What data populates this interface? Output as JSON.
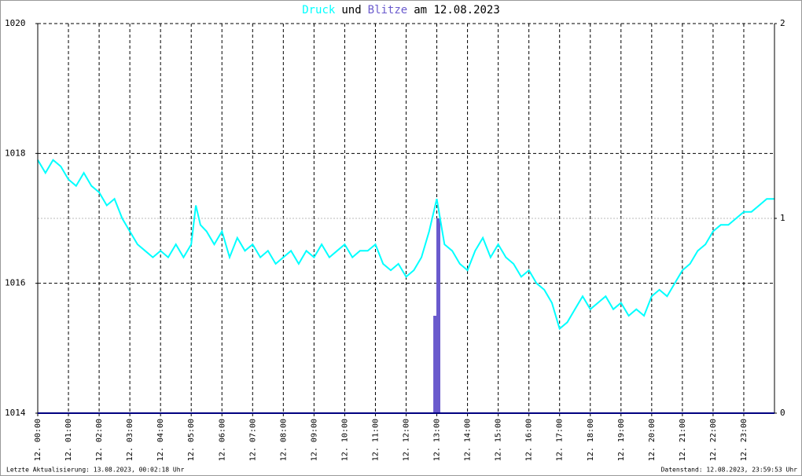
{
  "chart_data": {
    "type": "line",
    "title": [
      "Druck",
      "und",
      "Blitze",
      "am 12.08.2023"
    ],
    "footer_left": "Letzte Aktualisierung: 13.08.2023, 00:02:18 Uhr",
    "footer_right": "Datenstand: 12.08.2023, 23:59:53 Uhr",
    "xlim": [
      0,
      24
    ],
    "xticks": [
      {
        "value": 0,
        "label": "12. 00:00"
      },
      {
        "value": 1,
        "label": "12. 01:00"
      },
      {
        "value": 2,
        "label": "12. 02:00"
      },
      {
        "value": 3,
        "label": "12. 03:00"
      },
      {
        "value": 4,
        "label": "12. 04:00"
      },
      {
        "value": 5,
        "label": "12. 05:00"
      },
      {
        "value": 6,
        "label": "12. 06:00"
      },
      {
        "value": 7,
        "label": "12. 07:00"
      },
      {
        "value": 8,
        "label": "12. 08:00"
      },
      {
        "value": 9,
        "label": "12. 09:00"
      },
      {
        "value": 10,
        "label": "12. 10:00"
      },
      {
        "value": 11,
        "label": "12. 11:00"
      },
      {
        "value": 12,
        "label": "12. 12:00"
      },
      {
        "value": 13,
        "label": "12. 13:00"
      },
      {
        "value": 14,
        "label": "12. 14:00"
      },
      {
        "value": 15,
        "label": "12. 15:00"
      },
      {
        "value": 16,
        "label": "12. 16:00"
      },
      {
        "value": 17,
        "label": "12. 17:00"
      },
      {
        "value": 18,
        "label": "12. 18:00"
      },
      {
        "value": 19,
        "label": "12. 19:00"
      },
      {
        "value": 20,
        "label": "12. 20:00"
      },
      {
        "value": 21,
        "label": "12. 21:00"
      },
      {
        "value": 22,
        "label": "12. 22:00"
      },
      {
        "value": 23,
        "label": "12. 23:00"
      }
    ],
    "ylim": [
      1014,
      1020
    ],
    "yticks": [
      1014,
      1016,
      1018,
      1020
    ],
    "y2lim": [
      0,
      2
    ],
    "y2ticks": [
      0,
      1,
      2
    ],
    "grid": true,
    "series": [
      {
        "name": "Druck",
        "color": "#00ffff",
        "x": [
          0,
          0.25,
          0.5,
          0.75,
          1,
          1.25,
          1.5,
          1.75,
          2,
          2.25,
          2.5,
          2.75,
          3,
          3.25,
          3.5,
          3.75,
          4,
          4.25,
          4.5,
          4.75,
          5,
          5.15,
          5.3,
          5.5,
          5.75,
          6,
          6.25,
          6.5,
          6.75,
          7,
          7.25,
          7.5,
          7.75,
          8,
          8.25,
          8.5,
          8.75,
          9,
          9.25,
          9.5,
          9.75,
          10,
          10.25,
          10.5,
          10.75,
          11,
          11.25,
          11.5,
          11.75,
          12,
          12.25,
          12.5,
          12.75,
          13,
          13.25,
          13.5,
          13.75,
          14,
          14.25,
          14.5,
          14.75,
          15,
          15.25,
          15.5,
          15.75,
          16,
          16.25,
          16.5,
          16.75,
          17,
          17.25,
          17.5,
          17.75,
          18,
          18.25,
          18.5,
          18.75,
          19,
          19.25,
          19.5,
          19.75,
          20,
          20.25,
          20.5,
          20.75,
          21,
          21.25,
          21.5,
          21.75,
          22,
          22.25,
          22.5,
          22.75,
          23,
          23.25,
          23.5,
          23.75,
          24
        ],
        "values": [
          1017.9,
          1017.7,
          1017.9,
          1017.8,
          1017.6,
          1017.5,
          1017.7,
          1017.5,
          1017.4,
          1017.2,
          1017.3,
          1017.0,
          1016.8,
          1016.6,
          1016.5,
          1016.4,
          1016.5,
          1016.4,
          1016.6,
          1016.4,
          1016.6,
          1017.2,
          1016.9,
          1016.8,
          1016.6,
          1016.8,
          1016.4,
          1016.7,
          1016.5,
          1016.6,
          1016.4,
          1016.5,
          1016.3,
          1016.4,
          1016.5,
          1016.3,
          1016.5,
          1016.4,
          1016.6,
          1016.4,
          1016.5,
          1016.6,
          1016.4,
          1016.5,
          1016.5,
          1016.6,
          1016.3,
          1016.2,
          1016.3,
          1016.1,
          1016.2,
          1016.4,
          1016.8,
          1017.3,
          1016.6,
          1016.5,
          1016.3,
          1016.2,
          1016.5,
          1016.7,
          1016.4,
          1016.6,
          1016.4,
          1016.3,
          1016.1,
          1016.2,
          1016.0,
          1015.9,
          1015.7,
          1015.3,
          1015.4,
          1015.6,
          1015.8,
          1015.6,
          1015.7,
          1015.8,
          1015.6,
          1015.7,
          1015.5,
          1015.6,
          1015.5,
          1015.8,
          1015.9,
          1015.8,
          1016.0,
          1016.2,
          1016.3,
          1016.5,
          1016.6,
          1016.8,
          1016.9,
          1016.9,
          1017.0,
          1017.1,
          1017.1,
          1017.2,
          1017.3,
          1017.3
        ]
      },
      {
        "name": "Blitze",
        "color": "#6a5acd",
        "type": "bar",
        "axis": "y2",
        "x": [
          12.95,
          13.05
        ],
        "values": [
          0.5,
          1
        ]
      }
    ]
  }
}
